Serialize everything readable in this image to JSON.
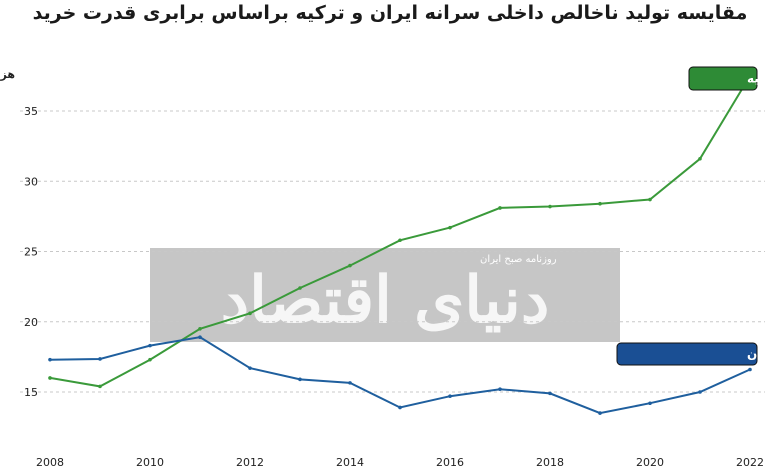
{
  "chart_data": {
    "type": "line",
    "title": "مقایسه تولید ناخالص داخلی سرانه ایران و ترکیه براساس برابری قدرت خرید",
    "ylabel": "هزار دلار",
    "x": [
      2008,
      2009,
      2010,
      2011,
      2012,
      2013,
      2014,
      2015,
      2016,
      2017,
      2018,
      2019,
      2020,
      2021,
      2022
    ],
    "xticks": [
      "2008",
      "2010",
      "2012",
      "2014",
      "2016",
      "2018",
      "2020",
      "2022"
    ],
    "yticks": [
      "15",
      "20",
      "25",
      "30",
      "35"
    ],
    "xlim": [
      2008,
      2022
    ],
    "ylim": [
      12,
      37.5
    ],
    "grid": "horizontal dashed",
    "series": [
      {
        "name": "ترکیه",
        "color": "#3a9a3a",
        "legend_color": "#2e8b36",
        "values": [
          16.0,
          15.4,
          17.3,
          19.5,
          20.6,
          22.4,
          24.0,
          25.8,
          26.7,
          28.1,
          28.2,
          28.4,
          28.7,
          31.6,
          37.5
        ]
      },
      {
        "name": "ایران",
        "color": "#1f5f9e",
        "legend_color": "#1a4f94",
        "values": [
          17.3,
          17.35,
          18.3,
          18.9,
          16.7,
          15.9,
          15.65,
          13.9,
          14.7,
          15.2,
          14.9,
          13.5,
          14.2,
          15.0,
          16.6
        ]
      }
    ]
  },
  "watermark": {
    "brand": "دنیای اقتصاد",
    "tagline": "روزنامه صبح ایران"
  }
}
